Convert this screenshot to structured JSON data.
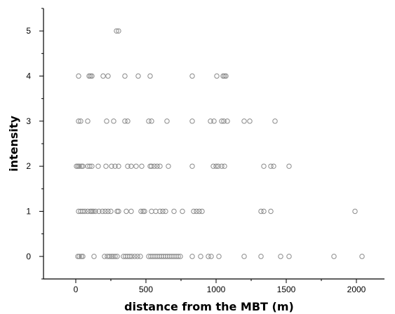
{
  "chart_data": {
    "type": "scatter",
    "title": "",
    "xlabel": "distance from the MBT (m)",
    "ylabel": "intensity",
    "xlim": [
      -230,
      2200
    ],
    "ylim": [
      -0.5,
      5.5
    ],
    "x_ticks": [
      0,
      500,
      1000,
      1500,
      2000
    ],
    "y_ticks": [
      0,
      1,
      2,
      3,
      4,
      5
    ],
    "grid": false,
    "legend": "none",
    "marker": "open-circle",
    "marker_color": "#8a8a8a",
    "series": [
      {
        "values": [
          {
            "y": 5,
            "x": [
              290,
              305
            ]
          },
          {
            "y": 4,
            "x": [
              20,
              95,
              105,
              115,
              195,
              230,
              350,
              445,
              530,
              830,
              1005,
              1050,
              1060,
              1070
            ]
          },
          {
            "y": 3,
            "x": [
              20,
              35,
              85,
              220,
              270,
              350,
              370,
              520,
              540,
              650,
              830,
              960,
              985,
              1040,
              1055,
              1080,
              1200,
              1240,
              1420
            ]
          },
          {
            "y": 2,
            "x": [
              5,
              15,
              25,
              40,
              50,
              85,
              100,
              115,
              160,
              215,
              255,
              280,
              305,
              370,
              395,
              430,
              470,
              530,
              540,
              560,
              580,
              600,
              660,
              830,
              980,
              1000,
              1015,
              1040,
              1060,
              1340,
              1390,
              1410,
              1520
            ]
          },
          {
            "y": 1,
            "x": [
              20,
              35,
              50,
              65,
              85,
              105,
              115,
              125,
              140,
              165,
              190,
              210,
              230,
              250,
              295,
              305,
              360,
              395,
              465,
              480,
              490,
              540,
              570,
              600,
              620,
              640,
              700,
              760,
              840,
              860,
              880,
              900,
              1320,
              1340,
              1390,
              1990
            ]
          },
          {
            "y": 0,
            "x": [
              15,
              25,
              40,
              50,
              130,
              205,
              225,
              240,
              255,
              265,
              280,
              295,
              340,
              355,
              370,
              385,
              400,
              420,
              440,
              460,
              520,
              535,
              550,
              565,
              580,
              595,
              610,
              625,
              640,
              655,
              670,
              685,
              700,
              715,
              730,
              745,
              830,
              890,
              945,
              965,
              1020,
              1200,
              1320,
              1460,
              1520,
              1840,
              2040
            ]
          }
        ]
      }
    ]
  }
}
